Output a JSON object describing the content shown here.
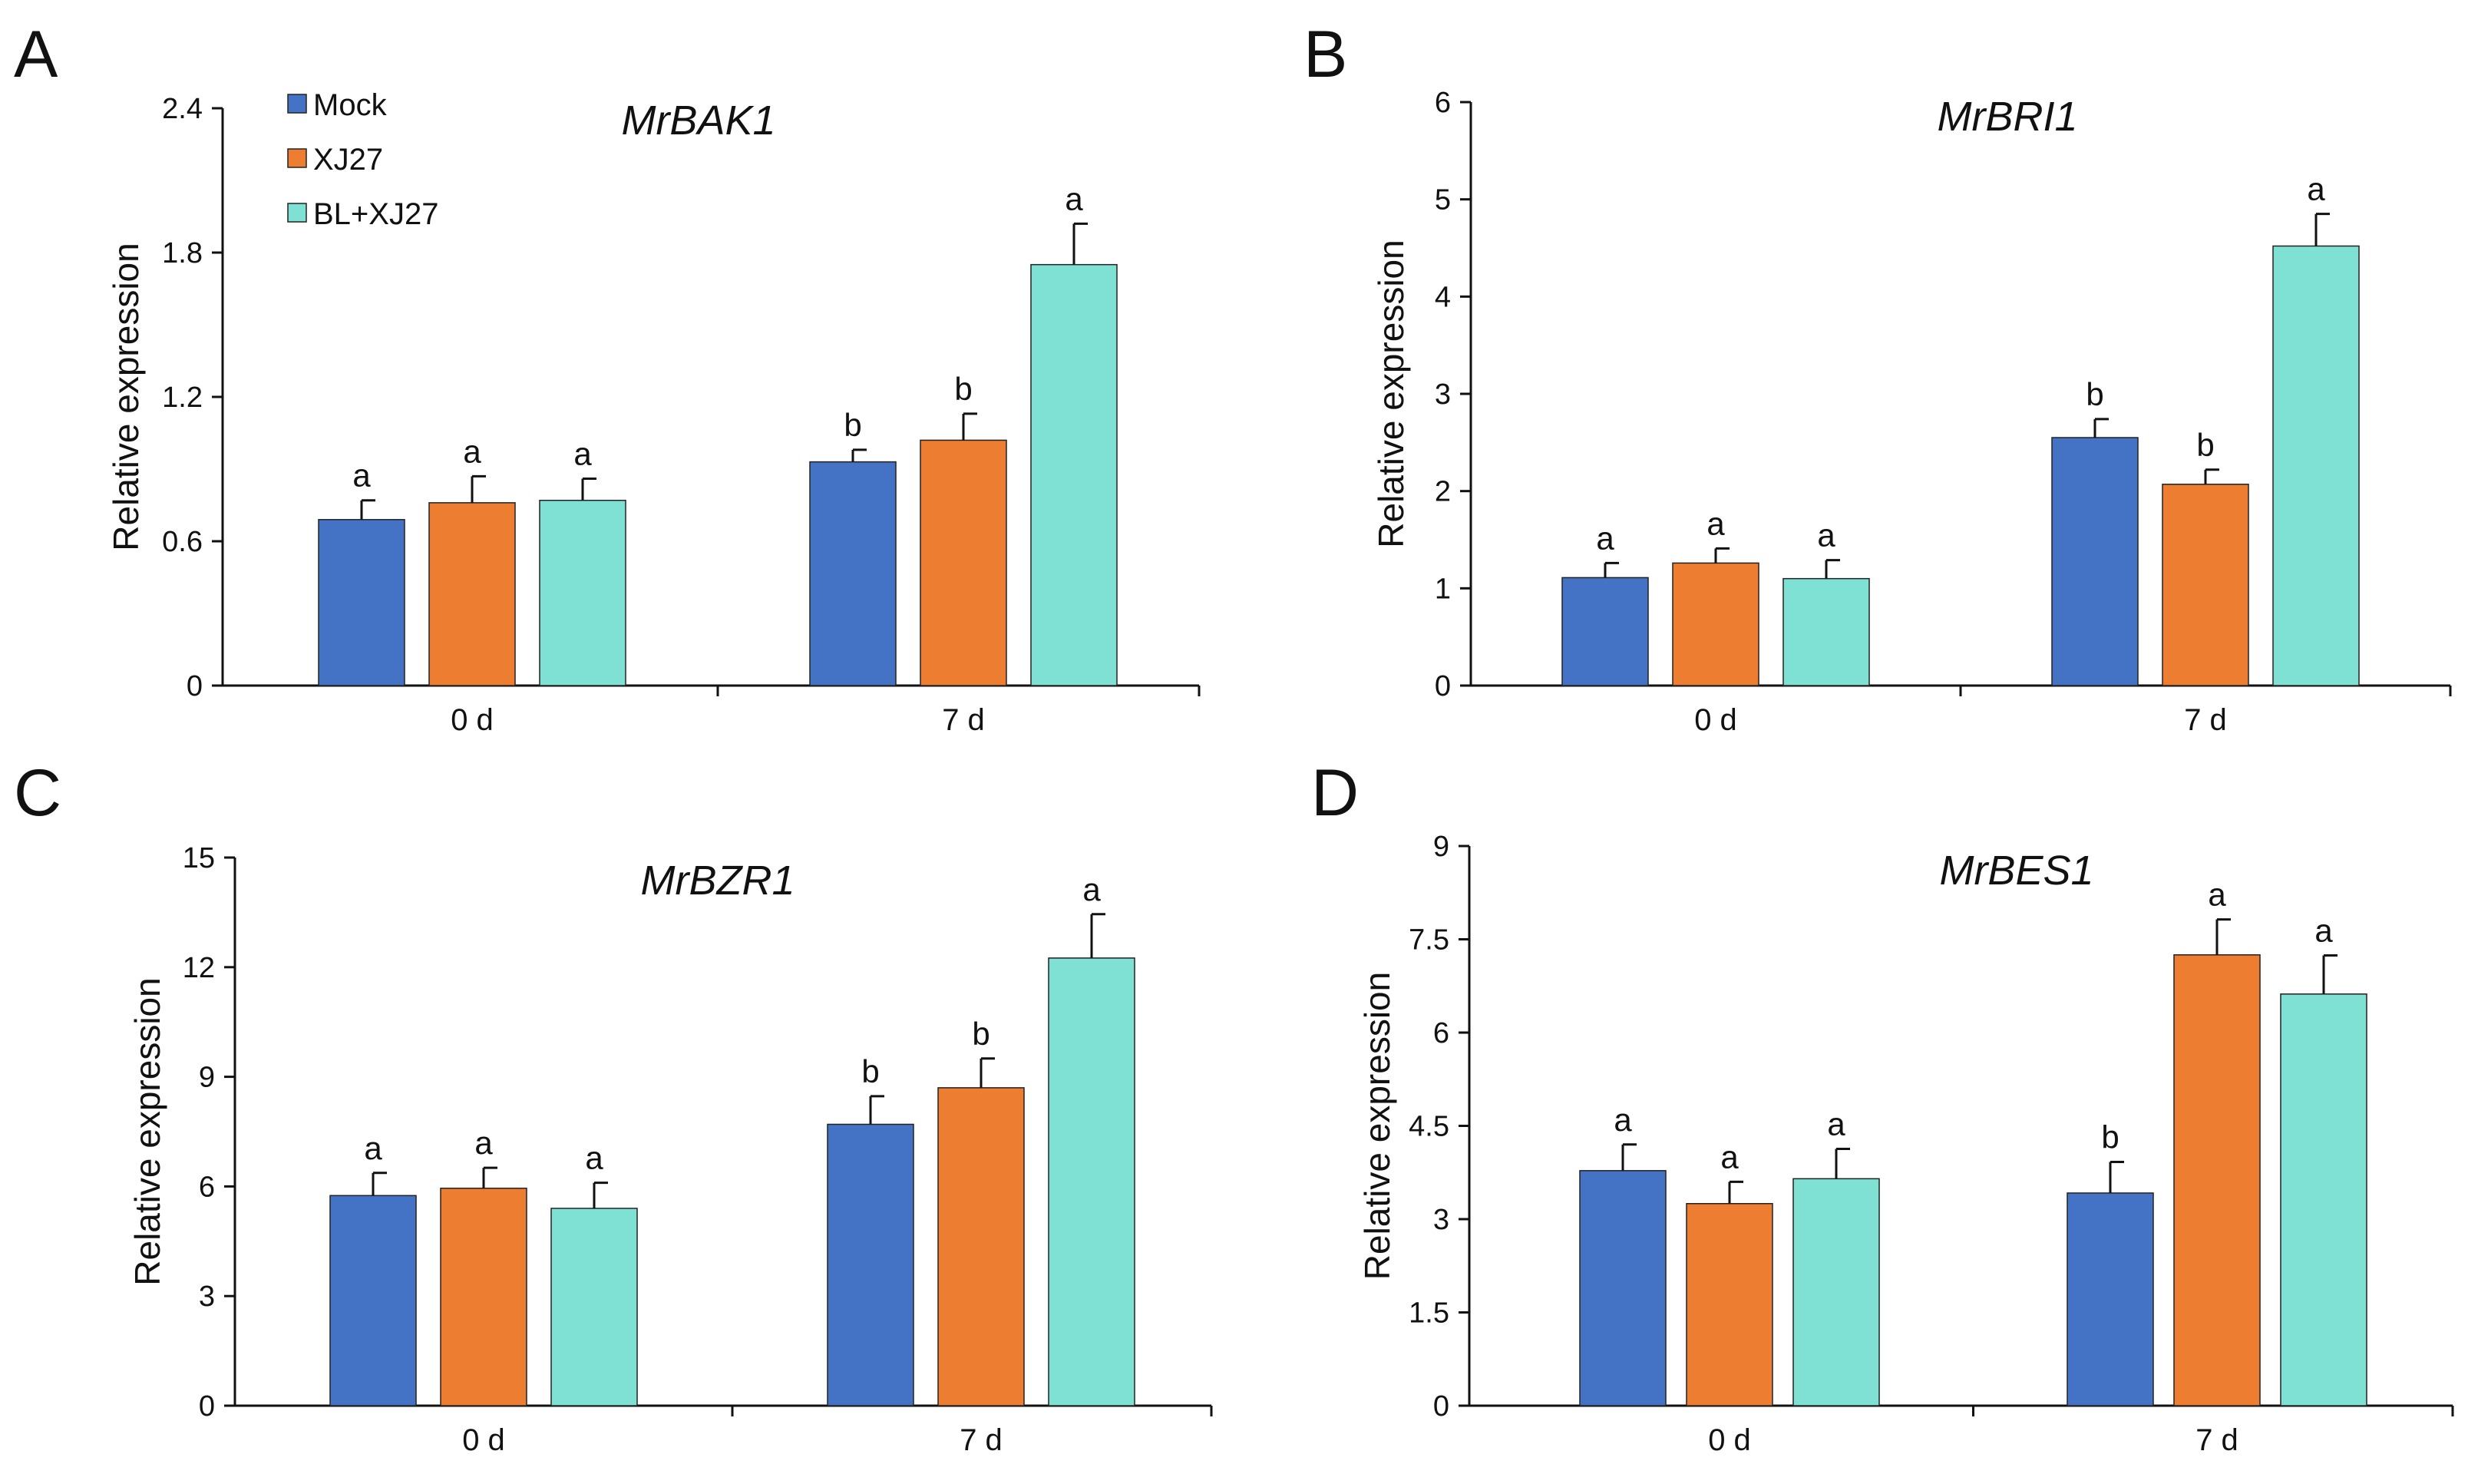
{
  "legend": [
    {
      "name": "Mock",
      "color": "#4472C4"
    },
    {
      "name": "XJ27",
      "color": "#ED7D31"
    },
    {
      "name": "BL+XJ27",
      "color": "#7FE0D4"
    }
  ],
  "chart_data": [
    {
      "panel": "A",
      "type": "bar",
      "title": "MrBAK1",
      "xlabel": "",
      "ylabel": "Relative expression",
      "ylim": [
        0,
        2.4
      ],
      "yticks": [
        "0",
        "0.6",
        "1.2",
        "1.8",
        "2.4"
      ],
      "categories": [
        "0 d",
        "7 d"
      ],
      "series": [
        {
          "name": "Mock",
          "values": [
            0.69,
            0.93
          ],
          "errors": [
            0.08,
            0.05
          ],
          "letters": [
            "a",
            "b"
          ]
        },
        {
          "name": "XJ27",
          "values": [
            0.76,
            1.02
          ],
          "errors": [
            0.11,
            0.11
          ],
          "letters": [
            "a",
            "b"
          ]
        },
        {
          "name": "BL+XJ27",
          "values": [
            0.77,
            1.75
          ],
          "errors": [
            0.09,
            0.17
          ],
          "letters": [
            "a",
            "a"
          ]
        }
      ]
    },
    {
      "panel": "B",
      "type": "bar",
      "title": "MrBRI1",
      "xlabel": "",
      "ylabel": "Relative expression",
      "ylim": [
        0,
        6
      ],
      "yticks": [
        "0",
        "1",
        "2",
        "3",
        "4",
        "5",
        "6"
      ],
      "categories": [
        "0 d",
        "7 d"
      ],
      "series": [
        {
          "name": "Mock",
          "values": [
            1.11,
            2.55
          ],
          "errors": [
            0.15,
            0.19
          ],
          "letters": [
            "a",
            "b"
          ]
        },
        {
          "name": "XJ27",
          "values": [
            1.26,
            2.07
          ],
          "errors": [
            0.15,
            0.15
          ],
          "letters": [
            "a",
            "b"
          ]
        },
        {
          "name": "BL+XJ27",
          "values": [
            1.1,
            4.52
          ],
          "errors": [
            0.19,
            0.33
          ],
          "letters": [
            "a",
            "a"
          ]
        }
      ]
    },
    {
      "panel": "C",
      "type": "bar",
      "title": "MrBZR1",
      "xlabel": "",
      "ylabel": "Relative expression",
      "ylim": [
        0,
        15
      ],
      "yticks": [
        "0",
        "3",
        "6",
        "9",
        "12",
        "15"
      ],
      "categories": [
        "0 d",
        "7 d"
      ],
      "series": [
        {
          "name": "Mock",
          "values": [
            5.75,
            7.7
          ],
          "errors": [
            0.62,
            0.77
          ],
          "letters": [
            "a",
            "b"
          ]
        },
        {
          "name": "XJ27",
          "values": [
            5.95,
            8.7
          ],
          "errors": [
            0.56,
            0.8
          ],
          "letters": [
            "a",
            "b"
          ]
        },
        {
          "name": "BL+XJ27",
          "values": [
            5.4,
            12.25
          ],
          "errors": [
            0.7,
            1.2
          ],
          "letters": [
            "a",
            "a"
          ]
        }
      ]
    },
    {
      "panel": "D",
      "type": "bar",
      "title": "MrBES1",
      "xlabel": "",
      "ylabel": "Relative expression",
      "ylim": [
        0,
        9
      ],
      "yticks": [
        "0",
        "1.5",
        "3",
        "4.5",
        "6",
        "7.5",
        "9"
      ],
      "categories": [
        "0 d",
        "7 d"
      ],
      "series": [
        {
          "name": "Mock",
          "values": [
            3.78,
            3.42
          ],
          "errors": [
            0.42,
            0.5
          ],
          "letters": [
            "a",
            "b"
          ]
        },
        {
          "name": "XJ27",
          "values": [
            3.25,
            7.25
          ],
          "errors": [
            0.35,
            0.57
          ],
          "letters": [
            "a",
            "a"
          ]
        },
        {
          "name": "BL+XJ27",
          "values": [
            3.65,
            6.62
          ],
          "errors": [
            0.48,
            0.62
          ],
          "letters": [
            "a",
            "a"
          ]
        }
      ]
    }
  ]
}
